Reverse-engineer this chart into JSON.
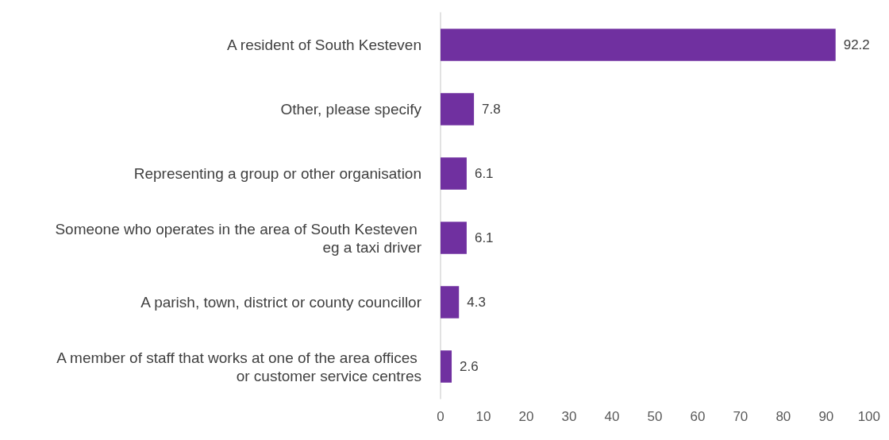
{
  "chart_data": {
    "type": "bar",
    "orientation": "horizontal",
    "categories": [
      "A resident of South Kesteven",
      "Other, please specify",
      "Representing a group or other organisation",
      "Someone who operates in the area of South Kesteven eg a taxi driver",
      "A parish, town, district or county councillor",
      "A member of staff that works at one of the area offices or customer service centres"
    ],
    "values": [
      92.2,
      7.8,
      6.1,
      6.1,
      4.3,
      2.6
    ],
    "color": "#7030a0",
    "xlim": [
      0,
      100
    ],
    "xticks": [
      0,
      10,
      20,
      30,
      40,
      50,
      60,
      70,
      80,
      90,
      100
    ],
    "data_labels": true,
    "grid": false
  }
}
